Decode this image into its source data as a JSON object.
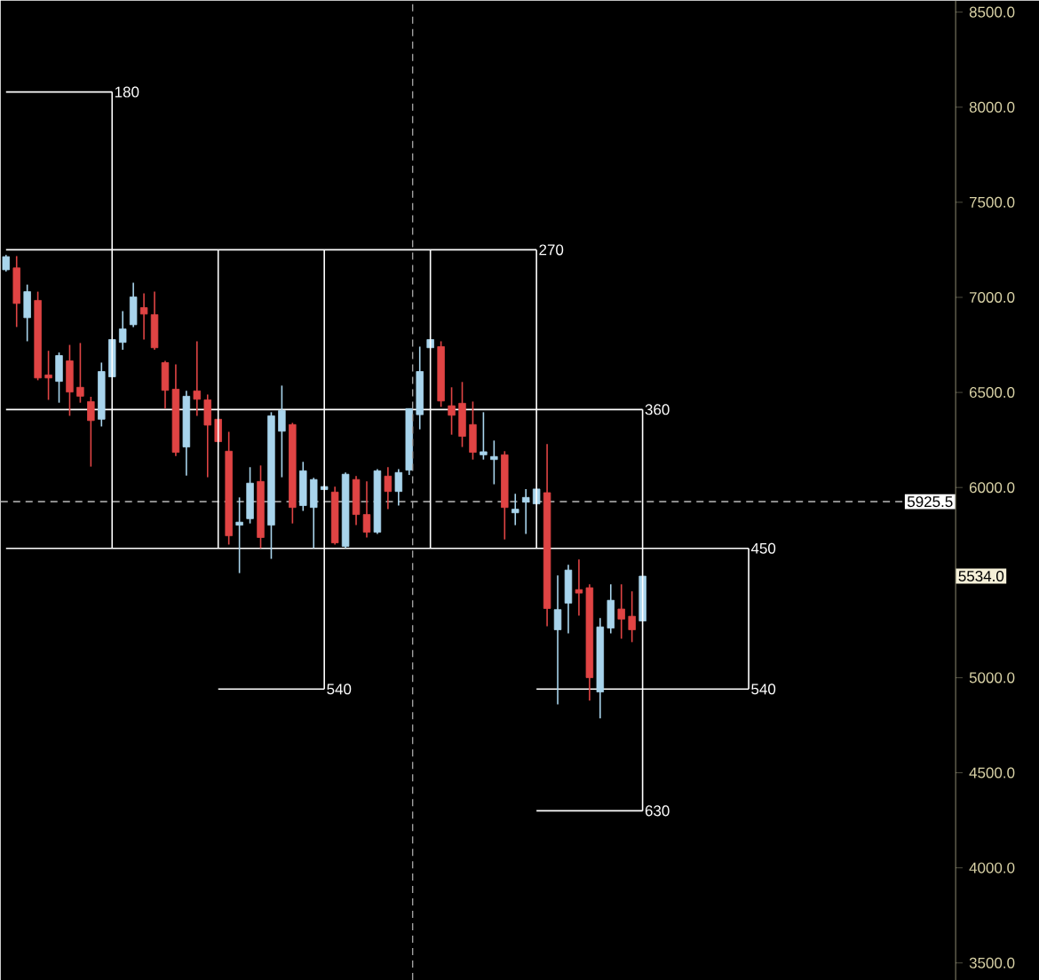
{
  "chart_data": {
    "type": "candlestick",
    "categories": [
      null,
      null,
      null,
      null,
      null,
      null,
      null,
      null,
      null,
      null,
      null,
      null,
      null,
      null,
      null,
      null,
      null,
      null,
      null,
      null,
      null,
      null,
      null,
      null,
      null,
      null,
      null,
      null,
      null,
      null,
      null,
      null,
      null,
      null,
      null,
      null,
      null,
      null,
      null,
      null,
      null,
      null,
      null,
      null,
      null,
      null,
      null,
      null,
      null,
      null,
      null,
      null,
      null,
      null,
      null,
      null,
      null,
      null,
      null,
      null,
      null,
      null,
      null,
      null,
      null,
      null,
      null,
      null,
      null,
      null,
      null,
      null,
      null,
      null,
      null,
      null,
      null,
      null,
      null,
      null,
      null,
      null,
      null,
      null,
      null,
      null,
      null,
      null,
      null,
      null
    ],
    "ohlc": [
      [
        7145,
        7223,
        7136,
        7214
      ],
      [
        7155,
        7217,
        6844,
        6968
      ],
      [
        6893,
        7067,
        6769,
        7030
      ],
      [
        6984,
        7030,
        6564,
        6576
      ],
      [
        6592,
        6719,
        6461,
        6576
      ],
      [
        6558,
        6710,
        6446,
        6694
      ],
      [
        6666,
        6750,
        6377,
        6502
      ],
      [
        6527,
        6760,
        6446,
        6480
      ],
      [
        6452,
        6477,
        6110,
        6352
      ],
      [
        6359,
        6657,
        6321,
        6610
      ],
      [
        6582,
        6778,
        6582,
        6778
      ],
      [
        6763,
        6928,
        6725,
        6834
      ],
      [
        6856,
        7077,
        6844,
        7002
      ],
      [
        6946,
        7021,
        6778,
        6912
      ],
      [
        6909,
        7030,
        6725,
        6735
      ],
      [
        6657,
        6666,
        6415,
        6511
      ],
      [
        6517,
        6648,
        6166,
        6185
      ],
      [
        6213,
        6508,
        6063,
        6480
      ],
      [
        6508,
        6769,
        6377,
        6464
      ],
      [
        6461,
        6489,
        6054,
        6328
      ],
      [
        6359,
        6359,
        6241,
        6241
      ],
      [
        6191,
        6293,
        5700,
        5746
      ],
      [
        5802,
        5948,
        5550,
        5818
      ],
      [
        5836,
        6107,
        5811,
        6023
      ],
      [
        6032,
        6116,
        5681,
        5737
      ],
      [
        5802,
        6396,
        5625,
        6377
      ],
      [
        6296,
        6536,
        6054,
        6405
      ],
      [
        6331,
        6340,
        5811,
        5895
      ],
      [
        5905,
        6135,
        5877,
        6088
      ],
      [
        5895,
        6051,
        5681,
        6042
      ],
      [
        5989,
        6010,
        5989,
        6005
      ],
      [
        5976,
        6005,
        5700,
        5709
      ],
      [
        5690,
        6079,
        5681,
        6070
      ],
      [
        6042,
        6060,
        5802,
        5858
      ],
      [
        5858,
        6032,
        5737,
        5765
      ],
      [
        5765,
        6097,
        5756,
        6088
      ],
      [
        6060,
        6107,
        5886,
        5979
      ],
      [
        5979,
        6097,
        5905,
        6079
      ],
      [
        6091,
        6415,
        6066,
        6415
      ],
      [
        6383,
        6741,
        6306,
        6610
      ],
      [
        6735,
        6778,
        6735,
        6778
      ],
      [
        6741,
        6769,
        6424,
        6455
      ],
      [
        6430,
        6527,
        6278,
        6380
      ],
      [
        6443,
        6555,
        6213,
        6269
      ],
      [
        6331,
        6452,
        6147,
        6185
      ],
      [
        6172,
        6396,
        6147,
        6188
      ],
      [
        6147,
        6247,
        6017,
        6163
      ],
      [
        6172,
        6191,
        5727,
        5895
      ],
      [
        5867,
        5967,
        5802,
        5886
      ],
      [
        5923,
        5992,
        5756,
        5948
      ],
      [
        5914,
        5992,
        5914,
        5992
      ],
      [
        5973,
        6228,
        5270,
        5364
      ],
      [
        5252,
        5538,
        4860,
        5358
      ],
      [
        5392,
        5594,
        5233,
        5566
      ],
      [
        5463,
        5622,
        5326,
        5445
      ],
      [
        5473,
        5491,
        4879,
        5000
      ],
      [
        4925,
        5314,
        4786,
        5267
      ],
      [
        5261,
        5491,
        5233,
        5407
      ],
      [
        5361,
        5491,
        5205,
        5308
      ],
      [
        5323,
        5454,
        5187,
        5252
      ],
      [
        5298,
        5534,
        5298,
        5534
      ],
      null,
      null,
      null,
      null,
      null,
      null,
      null,
      null,
      null,
      null,
      null,
      null,
      null,
      null,
      null,
      null,
      null,
      null,
      null,
      null,
      null,
      null,
      null,
      null,
      null,
      null,
      null,
      null,
      null
    ],
    "colors": [
      "#a8d4ec",
      "#e04444",
      "#a8d4ec",
      "#e04444",
      "#e04444",
      "#a8d4ec",
      "#e04444",
      "#e04444",
      "#e04444",
      "#a8d4ec",
      "#a8d4ec",
      "#a8d4ec",
      "#a8d4ec",
      "#e04444",
      "#e04444",
      "#e04444",
      "#e04444",
      "#a8d4ec",
      "#e04444",
      "#e04444",
      "#e04444",
      "#e04444",
      "#a8d4ec",
      "#a8d4ec",
      "#e04444",
      "#a8d4ec",
      "#a8d4ec",
      "#e04444",
      "#a8d4ec",
      "#a8d4ec",
      "#a8d4ec",
      "#e04444",
      "#a8d4ec",
      "#e04444",
      "#e04444",
      "#a8d4ec",
      "#e04444",
      "#a8d4ec",
      "#a8d4ec",
      "#a8d4ec",
      "#a8d4ec",
      "#e04444",
      "#e04444",
      "#e04444",
      "#e04444",
      "#a8d4ec",
      "#a8d4ec",
      "#e04444",
      "#a8d4ec",
      "#a8d4ec",
      "#a8d4ec",
      "#e04444",
      "#a8d4ec",
      "#a8d4ec",
      "#e04444",
      "#e04444",
      "#a8d4ec",
      "#a8d4ec",
      "#e04444",
      "#e04444",
      "#a8d4ec",
      null,
      null,
      null,
      null,
      null,
      null,
      null,
      null,
      null,
      null,
      null,
      null,
      null,
      null,
      null,
      null,
      null,
      null,
      null,
      null,
      null,
      null,
      null,
      null,
      null,
      null,
      null,
      null,
      null
    ],
    "series": [
      {
        "type": "line",
        "name": "180",
        "color": "#ffffff",
        "values": [
          8080,
          8080,
          8080,
          8080,
          8080,
          8080,
          8080,
          8080,
          8080,
          8080,
          8080,
          null,
          null,
          null,
          null,
          null,
          null,
          null,
          null,
          null,
          null,
          null,
          null,
          null,
          null,
          null,
          null,
          null,
          null,
          null,
          null,
          null,
          null,
          null,
          null,
          null,
          null,
          null,
          null,
          null,
          null,
          null,
          null,
          null,
          null,
          null,
          null,
          null,
          null,
          null,
          null,
          null,
          null,
          null,
          null,
          null,
          null,
          null,
          null,
          null,
          null,
          null,
          null,
          null,
          null,
          null,
          null,
          null,
          null,
          null,
          null,
          null,
          null,
          null,
          null,
          null,
          null,
          null,
          null,
          null,
          null,
          null,
          null,
          null,
          null,
          null,
          null,
          null,
          null,
          null
        ]
      },
      {
        "type": "line",
        "name": "270",
        "color": "#ffffff",
        "values": [
          7250,
          7250,
          7250,
          7250,
          7250,
          7250,
          7250,
          7250,
          7250,
          7250,
          7250,
          7250,
          7250,
          7250,
          7250,
          7250,
          7250,
          7250,
          7250,
          7250,
          7250,
          7250,
          7250,
          7250,
          7250,
          7250,
          7250,
          7250,
          7250,
          7250,
          7250,
          7250,
          7250,
          7250,
          7250,
          7250,
          7250,
          7250,
          7250,
          7250,
          7250,
          7250,
          7250,
          7250,
          7250,
          7250,
          7250,
          7250,
          7250,
          7250,
          7250,
          null,
          null,
          null,
          null,
          null,
          null,
          null,
          null,
          null,
          null,
          null,
          null,
          null,
          null,
          null,
          null,
          null,
          null,
          null,
          null,
          null,
          null,
          null,
          null,
          null,
          null,
          null,
          null,
          null,
          null,
          null,
          null,
          null,
          null,
          null,
          null,
          null,
          null,
          null
        ]
      },
      {
        "type": "line",
        "name": "360",
        "color": "#ffffff",
        "values": [
          6410,
          6410,
          6410,
          6410,
          6410,
          6410,
          6410,
          6410,
          6410,
          6410,
          6410,
          6410,
          6410,
          6410,
          6410,
          6410,
          6410,
          6410,
          6410,
          6410,
          6410,
          6410,
          6410,
          6410,
          6410,
          6410,
          6410,
          6410,
          6410,
          6410,
          6410,
          6410,
          6410,
          6410,
          6410,
          6410,
          6410,
          6410,
          6410,
          6410,
          6410,
          6410,
          6410,
          6410,
          6410,
          6410,
          6410,
          6410,
          6410,
          6410,
          6410,
          6410,
          6410,
          6410,
          6410,
          6410,
          6410,
          6410,
          6410,
          6410,
          6410,
          null,
          null,
          null,
          null,
          null,
          null,
          null,
          null,
          null,
          null,
          null,
          null,
          null,
          null,
          null,
          null,
          null,
          null,
          null,
          null,
          null,
          null,
          null,
          null,
          null,
          null,
          null,
          null,
          null
        ]
      },
      {
        "type": "line",
        "name": "450",
        "color": "#ffffff",
        "values": [
          5680,
          5680,
          5680,
          5680,
          5680,
          5680,
          5680,
          5680,
          5680,
          5680,
          5680,
          5680,
          5680,
          5680,
          5680,
          5680,
          5680,
          5680,
          5680,
          5680,
          5680,
          5680,
          5680,
          5680,
          5680,
          5680,
          5680,
          5680,
          5680,
          5680,
          5680,
          5680,
          5680,
          5680,
          5680,
          5680,
          5680,
          5680,
          5680,
          5680,
          5680,
          5680,
          5680,
          5680,
          5680,
          5680,
          5680,
          5680,
          5680,
          5680,
          5680,
          5680,
          5680,
          5680,
          5680,
          5680,
          5680,
          5680,
          5680,
          5680,
          5680,
          5680,
          5680,
          5680,
          5680,
          5680,
          5680,
          5680,
          5680,
          5680,
          5680,
          null,
          null,
          null,
          null,
          null,
          null,
          null,
          null,
          null,
          null,
          null,
          null,
          null,
          null,
          null,
          null,
          null,
          null,
          null
        ]
      },
      {
        "type": "line",
        "name": "540",
        "color": "#ffffff",
        "values": [
          null,
          null,
          null,
          null,
          null,
          null,
          null,
          null,
          null,
          null,
          null,
          null,
          null,
          null,
          null,
          null,
          null,
          null,
          null,
          null,
          4940,
          4940,
          4940,
          4940,
          4940,
          4940,
          4940,
          4940,
          4940,
          4940,
          4940,
          null,
          null,
          null,
          null,
          null,
          null,
          null,
          null,
          null,
          null,
          null,
          null,
          null,
          null,
          null,
          null,
          null,
          null,
          null,
          null,
          null,
          null,
          null,
          null,
          null,
          null,
          null,
          null,
          null,
          null,
          null,
          null,
          null,
          null,
          null,
          null,
          null,
          null,
          null,
          null,
          null,
          null,
          null,
          null,
          null,
          null,
          null,
          null,
          null,
          null,
          null,
          null,
          null,
          null,
          null,
          null,
          null,
          null,
          null
        ]
      },
      {
        "type": "line",
        "name": "540",
        "color": "#ffffff",
        "values": [
          null,
          null,
          null,
          null,
          null,
          null,
          null,
          null,
          null,
          null,
          null,
          null,
          null,
          null,
          null,
          null,
          null,
          null,
          null,
          null,
          null,
          null,
          null,
          null,
          null,
          null,
          null,
          null,
          null,
          null,
          null,
          null,
          null,
          null,
          null,
          null,
          null,
          null,
          null,
          null,
          null,
          null,
          null,
          null,
          null,
          null,
          null,
          null,
          null,
          null,
          4940,
          4940,
          4940,
          4940,
          4940,
          4940,
          4940,
          4940,
          4940,
          4940,
          4940,
          4940,
          4940,
          4940,
          4940,
          4940,
          4940,
          4940,
          4940,
          4940,
          4940,
          null,
          null,
          null,
          null,
          null,
          null,
          null,
          null,
          null,
          null,
          null,
          null,
          null,
          null,
          null,
          null,
          null,
          null,
          null
        ]
      },
      {
        "type": "line",
        "name": "630",
        "color": "#ffffff",
        "values": [
          null,
          null,
          null,
          null,
          null,
          null,
          null,
          null,
          null,
          null,
          null,
          null,
          null,
          null,
          null,
          null,
          null,
          null,
          null,
          null,
          null,
          null,
          null,
          null,
          null,
          null,
          null,
          null,
          null,
          null,
          null,
          null,
          null,
          null,
          null,
          null,
          null,
          null,
          null,
          null,
          null,
          null,
          null,
          null,
          null,
          null,
          null,
          null,
          null,
          null,
          4300,
          4300,
          4300,
          4300,
          4300,
          4300,
          4300,
          4300,
          4300,
          4300,
          4300,
          null,
          null,
          null,
          null,
          null,
          null,
          null,
          null,
          null,
          null,
          null,
          null,
          null,
          null,
          null,
          null,
          null,
          null,
          null,
          null,
          null,
          null,
          null,
          null,
          null,
          null,
          null,
          null,
          null
        ]
      }
    ],
    "ylim": [
      3410,
      8560
    ],
    "yticks": [
      {
        "value": 3500,
        "label": "3500.0"
      },
      {
        "value": 4000,
        "label": "4000.0"
      },
      {
        "value": 4500,
        "label": "4500.0"
      },
      {
        "value": 5000,
        "label": "5000.0"
      },
      {
        "value": 5500,
        "label": null
      },
      {
        "value": 6000,
        "label": "6000.0"
      },
      {
        "value": 6500,
        "label": "6500.0"
      },
      {
        "value": 7000,
        "label": "7000.0"
      },
      {
        "value": 7500,
        "label": "7500.0"
      },
      {
        "value": 8000,
        "label": "8000.0"
      },
      {
        "value": 8500,
        "label": "8500.0"
      }
    ],
    "tick_labels": "y",
    "ref_lines": [
      {
        "axis": "y",
        "value": 5925.5,
        "label": "5925.5",
        "line_style": "dashed",
        "color": "#a0a0a0"
      }
    ],
    "annotations": [
      "5534.0"
    ]
  }
}
